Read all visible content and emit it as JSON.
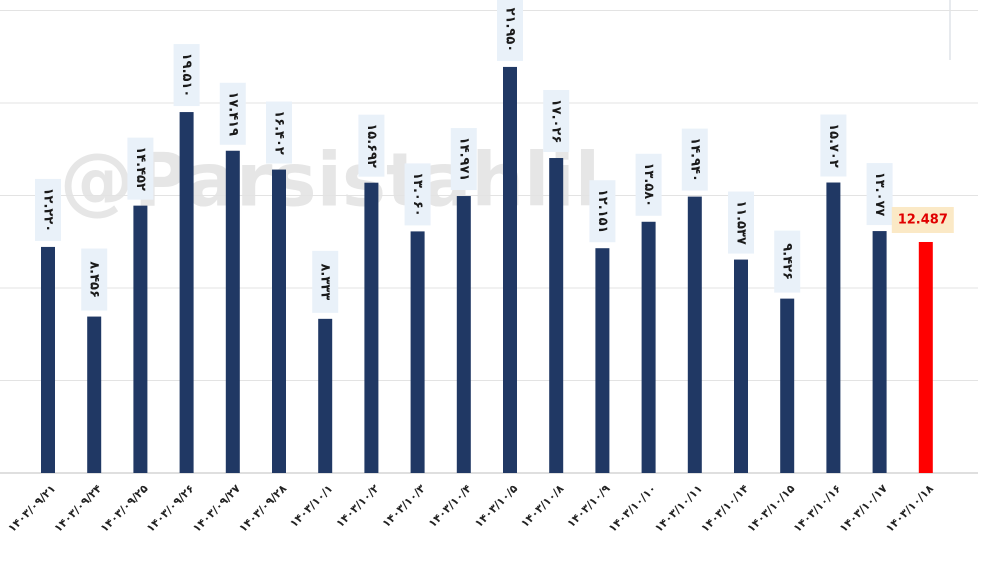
{
  "chart_data": {
    "type": "bar",
    "watermark": "@Parsistahlil",
    "categories": [
      "۱۴۰۳/۰۹/۲۱",
      "۱۴۰۳/۰۹/۲۴",
      "۱۴۰۳/۰۹/۲۵",
      "۱۴۰۳/۰۹/۲۶",
      "۱۴۰۳/۰۹/۲۷",
      "۱۴۰۳/۰۹/۲۸",
      "۱۴۰۳/۱۰/۱",
      "۱۴۰۳/۱۰/۲",
      "۱۴۰۳/۱۰/۳",
      "۱۴۰۳/۱۰/۴",
      "۱۴۰۳/۱۰/۵",
      "۱۴۰۳/۱۰/۸",
      "۱۴۰۳/۱۰/۹",
      "۱۴۰۳/۱۰/۱۰",
      "۱۴۰۳/۱۰/۱۱",
      "۱۴۰۳/۱۰/۱۴",
      "۱۴۰۳/۱۰/۱۵",
      "۱۴۰۳/۱۰/۱۶",
      "۱۴۰۳/۱۰/۱۷",
      "۱۴۰۳/۱۰/۱۸"
    ],
    "values": [
      12.22,
      8.456,
      14.452,
      19.51,
      17.419,
      16.402,
      8.333,
      15.692,
      13.06,
      14.971,
      21.95,
      17.026,
      12.151,
      13.58,
      14.94,
      11.537,
      9.426,
      15.702,
      13.077,
      12.487
    ],
    "value_labels": [
      "۱۲.۲۲۰",
      "۸.۴۵۶",
      "۱۴.۴۵۲",
      "۱۹.۵۱۰",
      "۱۷.۴۱۹",
      "۱۶.۴۰۲",
      "۸.۳۳۳",
      "۱۵.۶۹۲",
      "۱۳.۰۶۰",
      "۱۴.۹۷۱",
      "۲۱.۹۵۰",
      "۱۷.۰۲۶",
      "۱۲.۱۵۱",
      "۱۳.۵۸۰",
      "۱۴.۹۴۰",
      "۱۱.۵۳۷",
      "۹.۴۲۶",
      "۱۵.۷۰۲",
      "۱۳.۰۷۷",
      "12.487"
    ],
    "colors": [
      "#203864",
      "#203864",
      "#203864",
      "#203864",
      "#203864",
      "#203864",
      "#203864",
      "#203864",
      "#203864",
      "#203864",
      "#203864",
      "#203864",
      "#203864",
      "#203864",
      "#203864",
      "#203864",
      "#203864",
      "#203864",
      "#203864",
      "#ff0000"
    ],
    "ylim": [
      0,
      25
    ],
    "gridlines": [
      5,
      10,
      15,
      20,
      25
    ],
    "grid": true
  }
}
